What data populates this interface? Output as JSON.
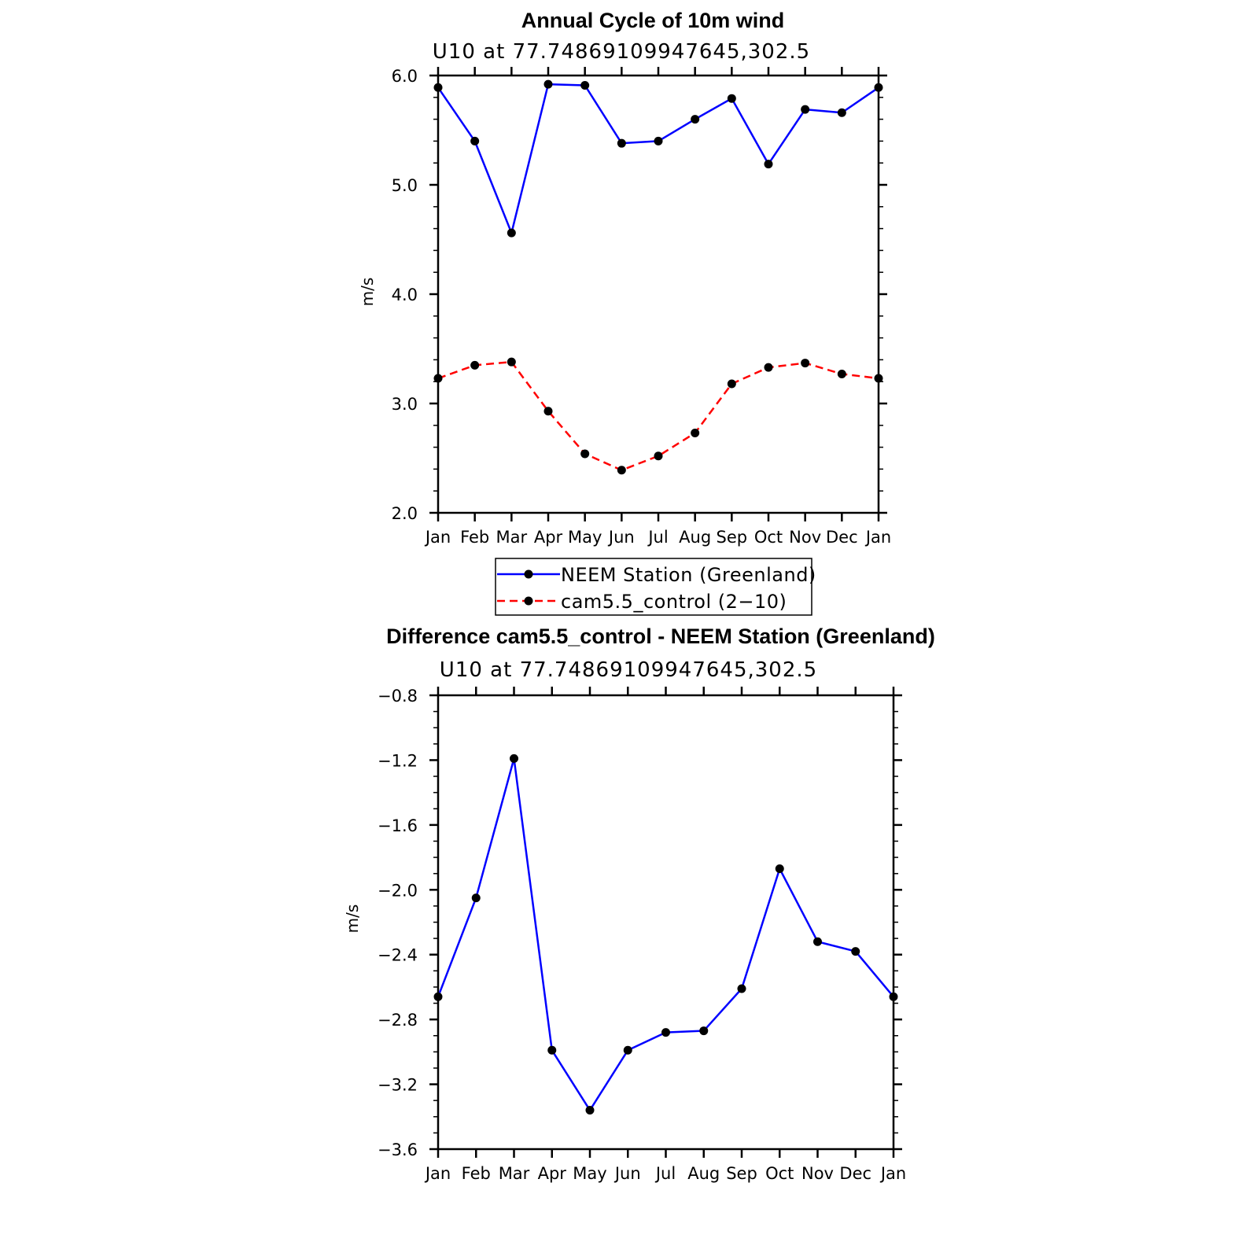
{
  "chart_data": [
    {
      "type": "line",
      "title": "Annual Cycle of 10m wind",
      "subtitle": "U10 at 77.74869109947645,302.5",
      "xlabel": "",
      "ylabel": "m/s",
      "categories": [
        "Jan",
        "Feb",
        "Mar",
        "Apr",
        "May",
        "Jun",
        "Jul",
        "Aug",
        "Sep",
        "Oct",
        "Nov",
        "Dec",
        "Jan"
      ],
      "ylim": [
        2.0,
        6.0
      ],
      "yticks": [
        "2.0",
        "3.0",
        "4.0",
        "5.0",
        "6.0"
      ],
      "grid": false,
      "legend": "bottom",
      "series": [
        {
          "name": "NEEM Station (Greenland)",
          "color": "#0000ff",
          "dash": "solid",
          "values": [
            5.89,
            5.4,
            4.56,
            5.92,
            5.91,
            5.38,
            5.4,
            5.6,
            5.79,
            5.19,
            5.69,
            5.66,
            5.89
          ]
        },
        {
          "name": "cam5.5_control (2−10)",
          "color": "#ff0000",
          "dash": "dashed",
          "values": [
            3.23,
            3.35,
            3.38,
            2.93,
            2.54,
            2.39,
            2.52,
            2.73,
            3.18,
            3.33,
            3.37,
            3.27,
            3.23
          ]
        }
      ]
    },
    {
      "type": "line",
      "title": "Difference cam5.5_control - NEEM Station (Greenland)",
      "subtitle": "U10 at 77.74869109947645,302.5",
      "xlabel": "",
      "ylabel": "m/s",
      "categories": [
        "Jan",
        "Feb",
        "Mar",
        "Apr",
        "May",
        "Jun",
        "Jul",
        "Aug",
        "Sep",
        "Oct",
        "Nov",
        "Dec",
        "Jan"
      ],
      "ylim": [
        -3.6,
        -0.8
      ],
      "yticks": [
        "−3.6",
        "−3.2",
        "−2.8",
        "−2.4",
        "−2.0",
        "−1.6",
        "−1.2",
        "−0.8"
      ],
      "grid": false,
      "series": [
        {
          "color": "#0000ff",
          "dash": "solid",
          "values": [
            -2.66,
            -2.05,
            -1.19,
            -2.99,
            -3.36,
            -2.99,
            -2.88,
            -2.87,
            -2.61,
            -1.87,
            -2.32,
            -2.38,
            -2.66
          ]
        }
      ]
    }
  ]
}
